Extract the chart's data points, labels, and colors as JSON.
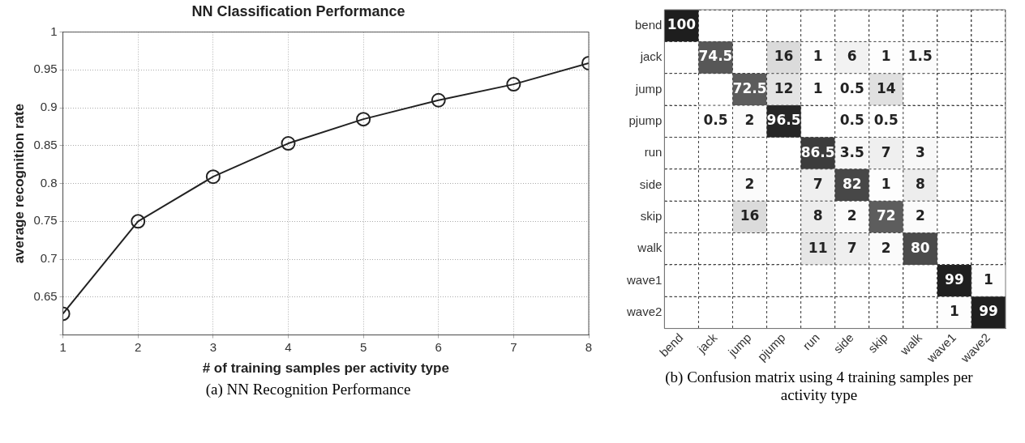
{
  "chart_data": [
    {
      "type": "line",
      "title": "NN Classification Performance",
      "xlabel": "# of training samples per activity type",
      "ylabel": "average recognition rate",
      "x": [
        1,
        2,
        3,
        4,
        5,
        6,
        7,
        8
      ],
      "series": [
        {
          "color": "#222222",
          "values": [
            0.628,
            0.75,
            0.809,
            0.853,
            0.885,
            0.91,
            0.931,
            0.959
          ]
        }
      ],
      "xlim": [
        1,
        8
      ],
      "xticks": [
        1,
        2,
        3,
        4,
        5,
        6,
        7,
        8
      ],
      "ylim": [
        0.6,
        1
      ],
      "yticks": [
        {
          "value": 0.6,
          "label": null
        },
        0.65,
        0.7,
        0.75,
        0.8,
        0.85,
        0.9,
        0.95,
        1
      ],
      "grid": true,
      "marker": "circle",
      "line_style": "solid",
      "annotations": [
        "(a) NN Recognition Performance"
      ]
    },
    {
      "type": "heatmap",
      "categories": [
        "bend",
        "jack",
        "jump",
        "pjump",
        "run",
        "side",
        "skip",
        "walk",
        "wave1",
        "wave2"
      ],
      "y_categories": [
        "bend",
        "jack",
        "jump",
        "pjump",
        "run",
        "side",
        "skip",
        "walk",
        "wave1",
        "wave2"
      ],
      "cells": [
        [
          100,
          null,
          null,
          null,
          null,
          null,
          null,
          null,
          null,
          null
        ],
        [
          null,
          74.5,
          null,
          16,
          1,
          6,
          1,
          1.5,
          null,
          null
        ],
        [
          null,
          null,
          72.5,
          12,
          1,
          0.5,
          14,
          null,
          null,
          null
        ],
        [
          null,
          0.5,
          2,
          96.5,
          null,
          0.5,
          0.5,
          null,
          null,
          null
        ],
        [
          null,
          null,
          null,
          null,
          86.5,
          3.5,
          7,
          3,
          null,
          null
        ],
        [
          null,
          null,
          2,
          null,
          7,
          82,
          1,
          8,
          null,
          null
        ],
        [
          null,
          null,
          16,
          null,
          8,
          2,
          72,
          2,
          null,
          null
        ],
        [
          null,
          null,
          null,
          null,
          11,
          7,
          2,
          80,
          null,
          null
        ],
        [
          null,
          null,
          null,
          null,
          null,
          null,
          null,
          null,
          99,
          1
        ],
        [
          null,
          null,
          null,
          null,
          null,
          null,
          null,
          null,
          1,
          99
        ]
      ],
      "data_labels": true,
      "grid": true,
      "annotations": [
        "(b) Confusion matrix using 4 training samples per activity type"
      ]
    }
  ]
}
